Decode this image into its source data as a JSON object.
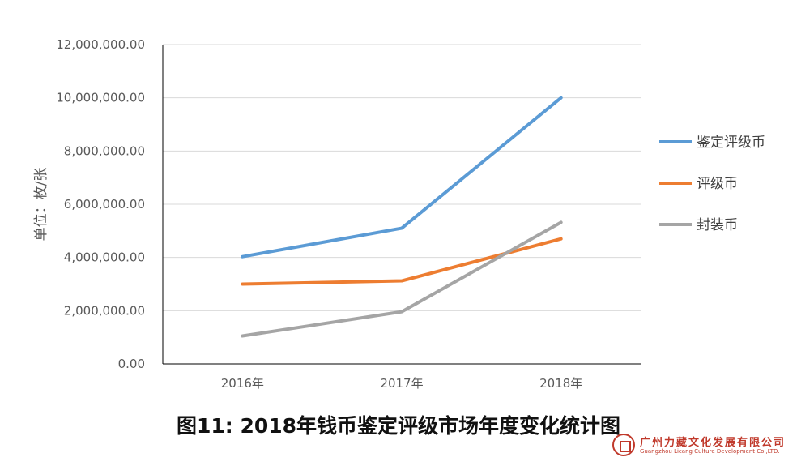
{
  "chart_data": {
    "type": "line",
    "title": "图11: 2018年钱币鉴定评级市场年度变化统计图",
    "ylabel": "单位：枚/张",
    "xlabel": "",
    "categories": [
      "2016年",
      "2017年",
      "2018年"
    ],
    "ylim": [
      0,
      12000000
    ],
    "yticks": [
      0,
      2000000,
      4000000,
      6000000,
      8000000,
      10000000,
      12000000
    ],
    "ytick_labels": [
      "0.00",
      "2,000,000.00",
      "4,000,000.00",
      "6,000,000.00",
      "8,000,000.00",
      "10,000,000.00",
      "12,000,000.00"
    ],
    "grid": true,
    "legend_position": "right",
    "series": [
      {
        "name": "鉴定评级币",
        "values": [
          4030000,
          5100000,
          10000000
        ],
        "color": "#5b9bd5"
      },
      {
        "name": "评级币",
        "values": [
          3000000,
          3120000,
          4700000
        ],
        "color": "#ed7d31"
      },
      {
        "name": "封装币",
        "values": [
          1050000,
          1960000,
          5320000
        ],
        "color": "#a5a5a5"
      }
    ]
  },
  "company": {
    "name_cn": "广州力藏文化发展有限公司",
    "name_en": "Guangzhou Licang Culture Development Co.,LTD."
  }
}
